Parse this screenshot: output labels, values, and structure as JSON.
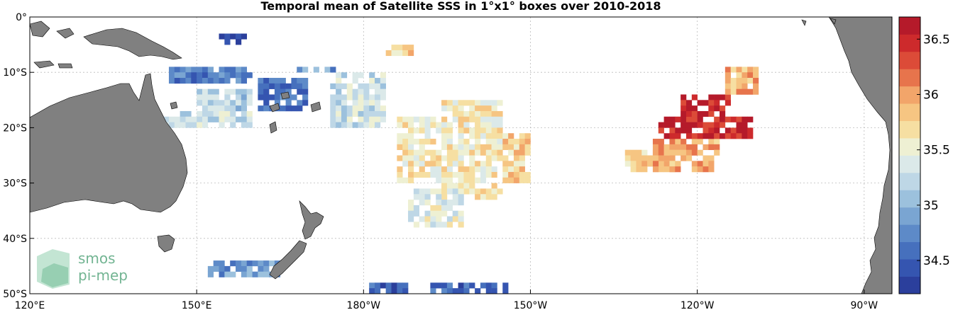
{
  "title": "Temporal mean of Satellite SSS in 1°x1° boxes over 2010-2018",
  "x_ticks": [
    {
      "lon": 120,
      "label": "120°E"
    },
    {
      "lon": 150,
      "label": "150°E"
    },
    {
      "lon": 180,
      "label": "180°W"
    },
    {
      "lon": 210,
      "label": "150°W"
    },
    {
      "lon": 240,
      "label": "120°W"
    },
    {
      "lon": 270,
      "label": "90°W"
    }
  ],
  "y_ticks": [
    {
      "lat": 0,
      "label": "0°"
    },
    {
      "lat": -10,
      "label": "10°S"
    },
    {
      "lat": -20,
      "label": "20°S"
    },
    {
      "lat": -30,
      "label": "30°S"
    },
    {
      "lat": -40,
      "label": "40°S"
    },
    {
      "lat": -50,
      "label": "50°S"
    }
  ],
  "colorbar": {
    "min": 34.2,
    "max": 36.7,
    "ticks": [
      "34.5",
      "35",
      "35.5",
      "36",
      "36.5"
    ],
    "colors": [
      "#2b3f9c",
      "#3555b0",
      "#4670bd",
      "#5d8ac8",
      "#7aa5d2",
      "#9cc1dd",
      "#bed7e6",
      "#dbe9e9",
      "#eef0d3",
      "#f6dfa2",
      "#f6c582",
      "#f2a56a",
      "#e7744c",
      "#dc4b38",
      "#cd2a2c",
      "#b51a2a"
    ]
  },
  "logo": {
    "line1": "smos",
    "line2": "pi-mep"
  },
  "chart_data": {
    "type": "heatmap",
    "title": "Temporal mean of Satellite SSS in 1°x1° boxes over 2010-2018",
    "grid": "on",
    "xlim": [
      120,
      275
    ],
    "ylim": [
      -50,
      0
    ],
    "value_range": [
      34.2,
      36.7
    ],
    "regions": [
      {
        "lon": [
          150,
          160
        ],
        "lat": [
          -17,
          -13
        ],
        "sss": 35.2
      },
      {
        "lon": [
          145,
          161
        ],
        "lat": [
          -12,
          -9
        ],
        "sss": 34.7
      },
      {
        "lon": [
          161,
          170
        ],
        "lat": [
          -17,
          -11
        ],
        "sss": 34.6
      },
      {
        "lon": [
          144,
          160
        ],
        "lat": [
          -20,
          -17
        ],
        "sss": 35.3
      },
      {
        "lon": [
          154,
          159
        ],
        "lat": [
          -5,
          -3
        ],
        "sss": 34.4
      },
      {
        "lon": [
          168,
          175
        ],
        "lat": [
          -10,
          -9
        ],
        "sss": 34.9
      },
      {
        "lon": [
          152,
          165
        ],
        "lat": [
          -47,
          -44
        ],
        "sss": 34.8
      },
      {
        "lon": [
          174,
          184
        ],
        "lat": [
          -20,
          -10
        ],
        "sss": 35.3
      },
      {
        "lon": [
          186,
          194
        ],
        "lat": [
          -30,
          -18
        ],
        "sss": 35.6
      },
      {
        "lon": [
          194,
          205
        ],
        "lat": [
          -33,
          -15
        ],
        "sss": 35.6
      },
      {
        "lon": [
          205,
          210
        ],
        "lat": [
          -30,
          -21
        ],
        "sss": 35.8
      },
      {
        "lon": [
          188,
          198
        ],
        "lat": [
          -38,
          -31
        ],
        "sss": 35.4
      },
      {
        "lon": [
          184,
          189
        ],
        "lat": [
          -7,
          -5
        ],
        "sss": 35.8
      },
      {
        "lon": [
          227,
          236
        ],
        "lat": [
          -28,
          -24
        ],
        "sss": 35.7
      },
      {
        "lon": [
          232,
          244
        ],
        "lat": [
          -28,
          -22
        ],
        "sss": 36.0
      },
      {
        "lon": [
          233,
          250
        ],
        "lat": [
          -22,
          -18
        ],
        "sss": 36.5
      },
      {
        "lon": [
          237,
          246
        ],
        "lat": [
          -18,
          -14
        ],
        "sss": 36.5
      },
      {
        "lon": [
          245,
          251
        ],
        "lat": [
          -14,
          -9
        ],
        "sss": 35.9
      },
      {
        "lon": [
          181,
          188
        ],
        "lat": [
          -50,
          -48
        ],
        "sss": 34.5
      },
      {
        "lon": [
          192,
          206
        ],
        "lat": [
          -50,
          -48
        ],
        "sss": 34.5
      }
    ]
  }
}
